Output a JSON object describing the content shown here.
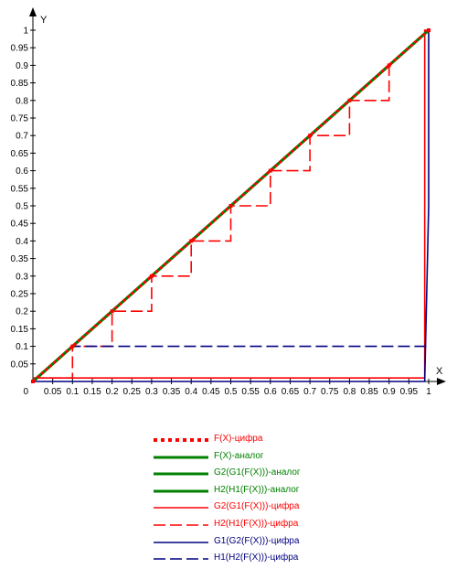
{
  "chart_data": {
    "type": "line",
    "xlabel": "X",
    "ylabel": "Y",
    "origin_label": "0",
    "xlim": [
      0,
      1
    ],
    "ylim": [
      0,
      1
    ],
    "x_ticks": [
      "0.05",
      "0.1",
      "0.15",
      "0.2",
      "0.25",
      "0.3",
      "0.35",
      "0.4",
      "0.45",
      "0.5",
      "0.55",
      "0.6",
      "0.65",
      "0.7",
      "0.75",
      "0.8",
      "0.85",
      "0.9",
      "0.95",
      "1"
    ],
    "y_ticks": [
      "0.05",
      "0.1",
      "0.15",
      "0.2",
      "0.25",
      "0.3",
      "0.35",
      "0.4",
      "0.45",
      "0.5",
      "0.55",
      "0.6",
      "0.65",
      "0.7",
      "0.75",
      "0.8",
      "0.85",
      "0.9",
      "0.95",
      "1"
    ],
    "grid": false,
    "legend_position": "bottom",
    "series": [
      {
        "name": "F(X)-цифра",
        "color": "#ff0000",
        "style": "dotted-squares",
        "x": [
          0,
          0.1,
          0.2,
          0.3,
          0.4,
          0.5,
          0.6,
          0.7,
          0.8,
          0.9,
          1
        ],
        "y": [
          0,
          0.1,
          0.2,
          0.3,
          0.4,
          0.5,
          0.6,
          0.7,
          0.8,
          0.9,
          1
        ]
      },
      {
        "name": "F(X)-аналог",
        "color": "#008000",
        "style": "solid-thick",
        "x": [
          0,
          1
        ],
        "y": [
          0,
          1
        ]
      },
      {
        "name": "G2(G1(F(X)))-аналог",
        "color": "#008000",
        "style": "solid-thick",
        "x": [
          0,
          1
        ],
        "y": [
          0,
          1
        ]
      },
      {
        "name": "H2(H1(F(X)))-аналог",
        "color": "#008000",
        "style": "solid-thick",
        "x": [
          0,
          1
        ],
        "y": [
          0,
          1
        ]
      },
      {
        "name": "G2(G1(F(X)))-цифра",
        "color": "#ff0000",
        "style": "solid",
        "x": [
          0,
          0.99,
          0.99,
          1
        ],
        "y": [
          0.01,
          0.01,
          1,
          1
        ]
      },
      {
        "name": "H2(H1(F(X)))-цифра",
        "color": "#ff0000",
        "style": "dashed",
        "x": [
          0,
          0.1,
          0.1,
          0.2,
          0.2,
          0.3,
          0.3,
          0.4,
          0.4,
          0.5,
          0.5,
          0.6,
          0.6,
          0.7,
          0.7,
          0.8,
          0.8,
          0.9,
          0.9,
          1
        ],
        "y": [
          0.01,
          0.01,
          0.1,
          0.1,
          0.2,
          0.2,
          0.3,
          0.3,
          0.4,
          0.4,
          0.5,
          0.5,
          0.6,
          0.6,
          0.7,
          0.7,
          0.8,
          0.8,
          0.9,
          1
        ]
      },
      {
        "name": "G1(G2(F(X)))-цифра",
        "color": "#000080",
        "style": "solid",
        "x": [
          0,
          0.99,
          1,
          1
        ],
        "y": [
          0,
          0,
          0.5,
          1
        ]
      },
      {
        "name": "H1(H2(F(X)))-цифра",
        "color": "#000080",
        "style": "dashed",
        "x": [
          0,
          0.1,
          1
        ],
        "y": [
          0,
          0.1,
          0.1
        ]
      }
    ]
  }
}
